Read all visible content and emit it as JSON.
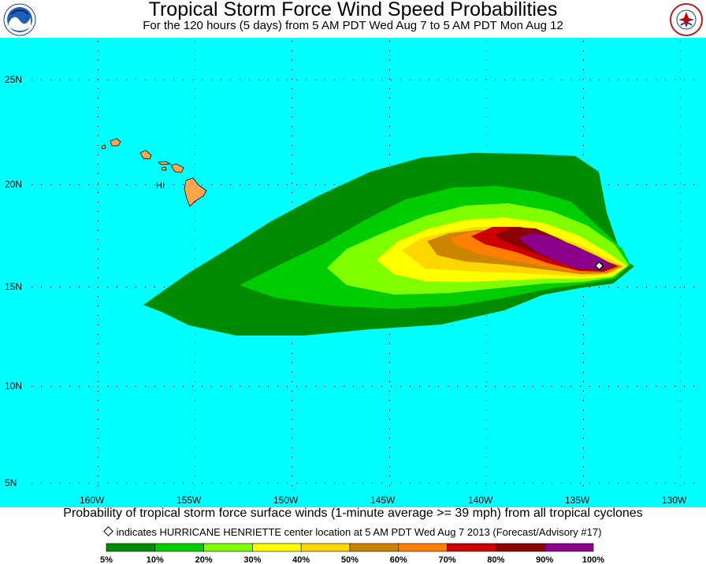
{
  "header": {
    "title": "Tropical Storm Force Wind Speed Probabilities",
    "subtitle": "For the 120 hours (5 days) from 5 AM PDT Wed Aug 7 to 5 AM PDT Mon Aug 12"
  },
  "map": {
    "ocean_color": "#00ffff",
    "land_color": "#ffa54f",
    "island_label": "HI",
    "lat_labels": [
      "25N",
      "20N",
      "15N",
      "10N",
      "5N"
    ],
    "lon_labels": [
      "160W",
      "155W",
      "150W",
      "145W",
      "140W",
      "135W",
      "130W"
    ]
  },
  "caption": "Probability of tropical storm force surface winds (1-minute average >= 39 mph) from all tropical cyclones",
  "legend": {
    "marker_text": "indicates HURRICANE HENRIETTE center location at 5 AM PDT Wed Aug 7 2013 (Forecast/Advisory #17)",
    "colors": [
      "#008b00",
      "#00cd00",
      "#7fff00",
      "#ffff00",
      "#ffd700",
      "#cd8500",
      "#ff7f00",
      "#cd0000",
      "#8b0000",
      "#8b008b"
    ],
    "labels": [
      "5%",
      "10%",
      "20%",
      "30%",
      "40%",
      "50%",
      "60%",
      "70%",
      "80%",
      "90%",
      "100%"
    ]
  }
}
